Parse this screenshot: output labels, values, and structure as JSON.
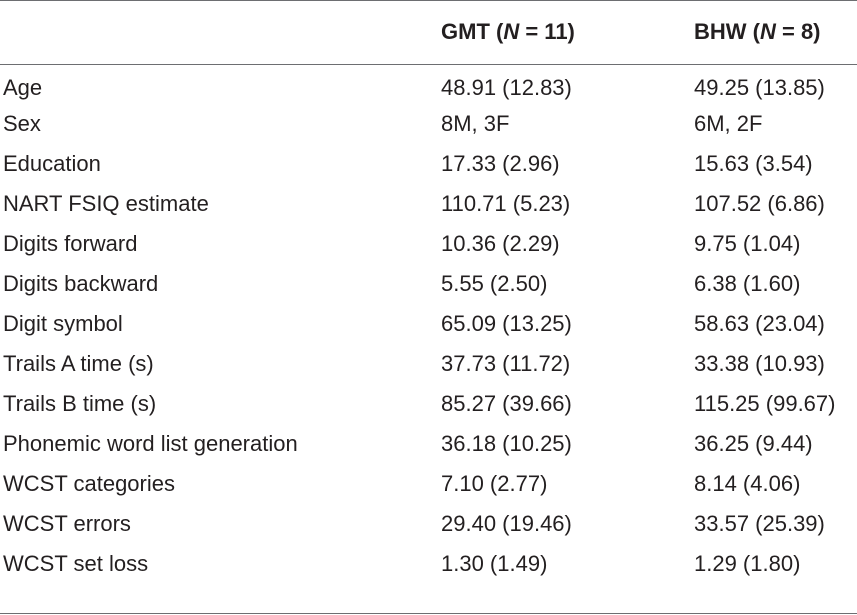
{
  "header": {
    "col1_prefix": "GMT (",
    "col1_n_symbol": "N",
    "col1_suffix": " = 11)",
    "col2_prefix": "BHW (",
    "col2_n_symbol": "N",
    "col2_suffix": " = 8)"
  },
  "rows": [
    {
      "label": "Age",
      "gmt": "48.91 (12.83)",
      "bhw": "49.25 (13.85)"
    },
    {
      "label": "Sex",
      "gmt": "8M, 3F",
      "bhw": "6M, 2F"
    },
    {
      "label": "Education",
      "gmt": "17.33 (2.96)",
      "bhw": "15.63 (3.54)"
    },
    {
      "label": "NART FSIQ estimate",
      "gmt": "110.71 (5.23)",
      "bhw": "107.52 (6.86)"
    },
    {
      "label": "Digits forward",
      "gmt": "10.36 (2.29)",
      "bhw": "9.75 (1.04)"
    },
    {
      "label": "Digits backward",
      "gmt": "5.55 (2.50)",
      "bhw": "6.38 (1.60)"
    },
    {
      "label": "Digit symbol",
      "gmt": "65.09 (13.25)",
      "bhw": "58.63 (23.04)"
    },
    {
      "label": "Trails A time (s)",
      "gmt": "37.73 (11.72)",
      "bhw": "33.38 (10.93)"
    },
    {
      "label": "Trails B time (s)",
      "gmt": "85.27 (39.66)",
      "bhw": "115.25 (99.67)"
    },
    {
      "label": "Phonemic word list generation",
      "gmt": "36.18 (10.25)",
      "bhw": "36.25 (9.44)"
    },
    {
      "label": "WCST categories",
      "gmt": "7.10 (2.77)",
      "bhw": "8.14 (4.06)"
    },
    {
      "label": "WCST errors",
      "gmt": "29.40 (19.46)",
      "bhw": "33.57 (25.39)"
    },
    {
      "label": "WCST set loss",
      "gmt": "1.30 (1.49)",
      "bhw": "1.29 (1.80)"
    }
  ]
}
